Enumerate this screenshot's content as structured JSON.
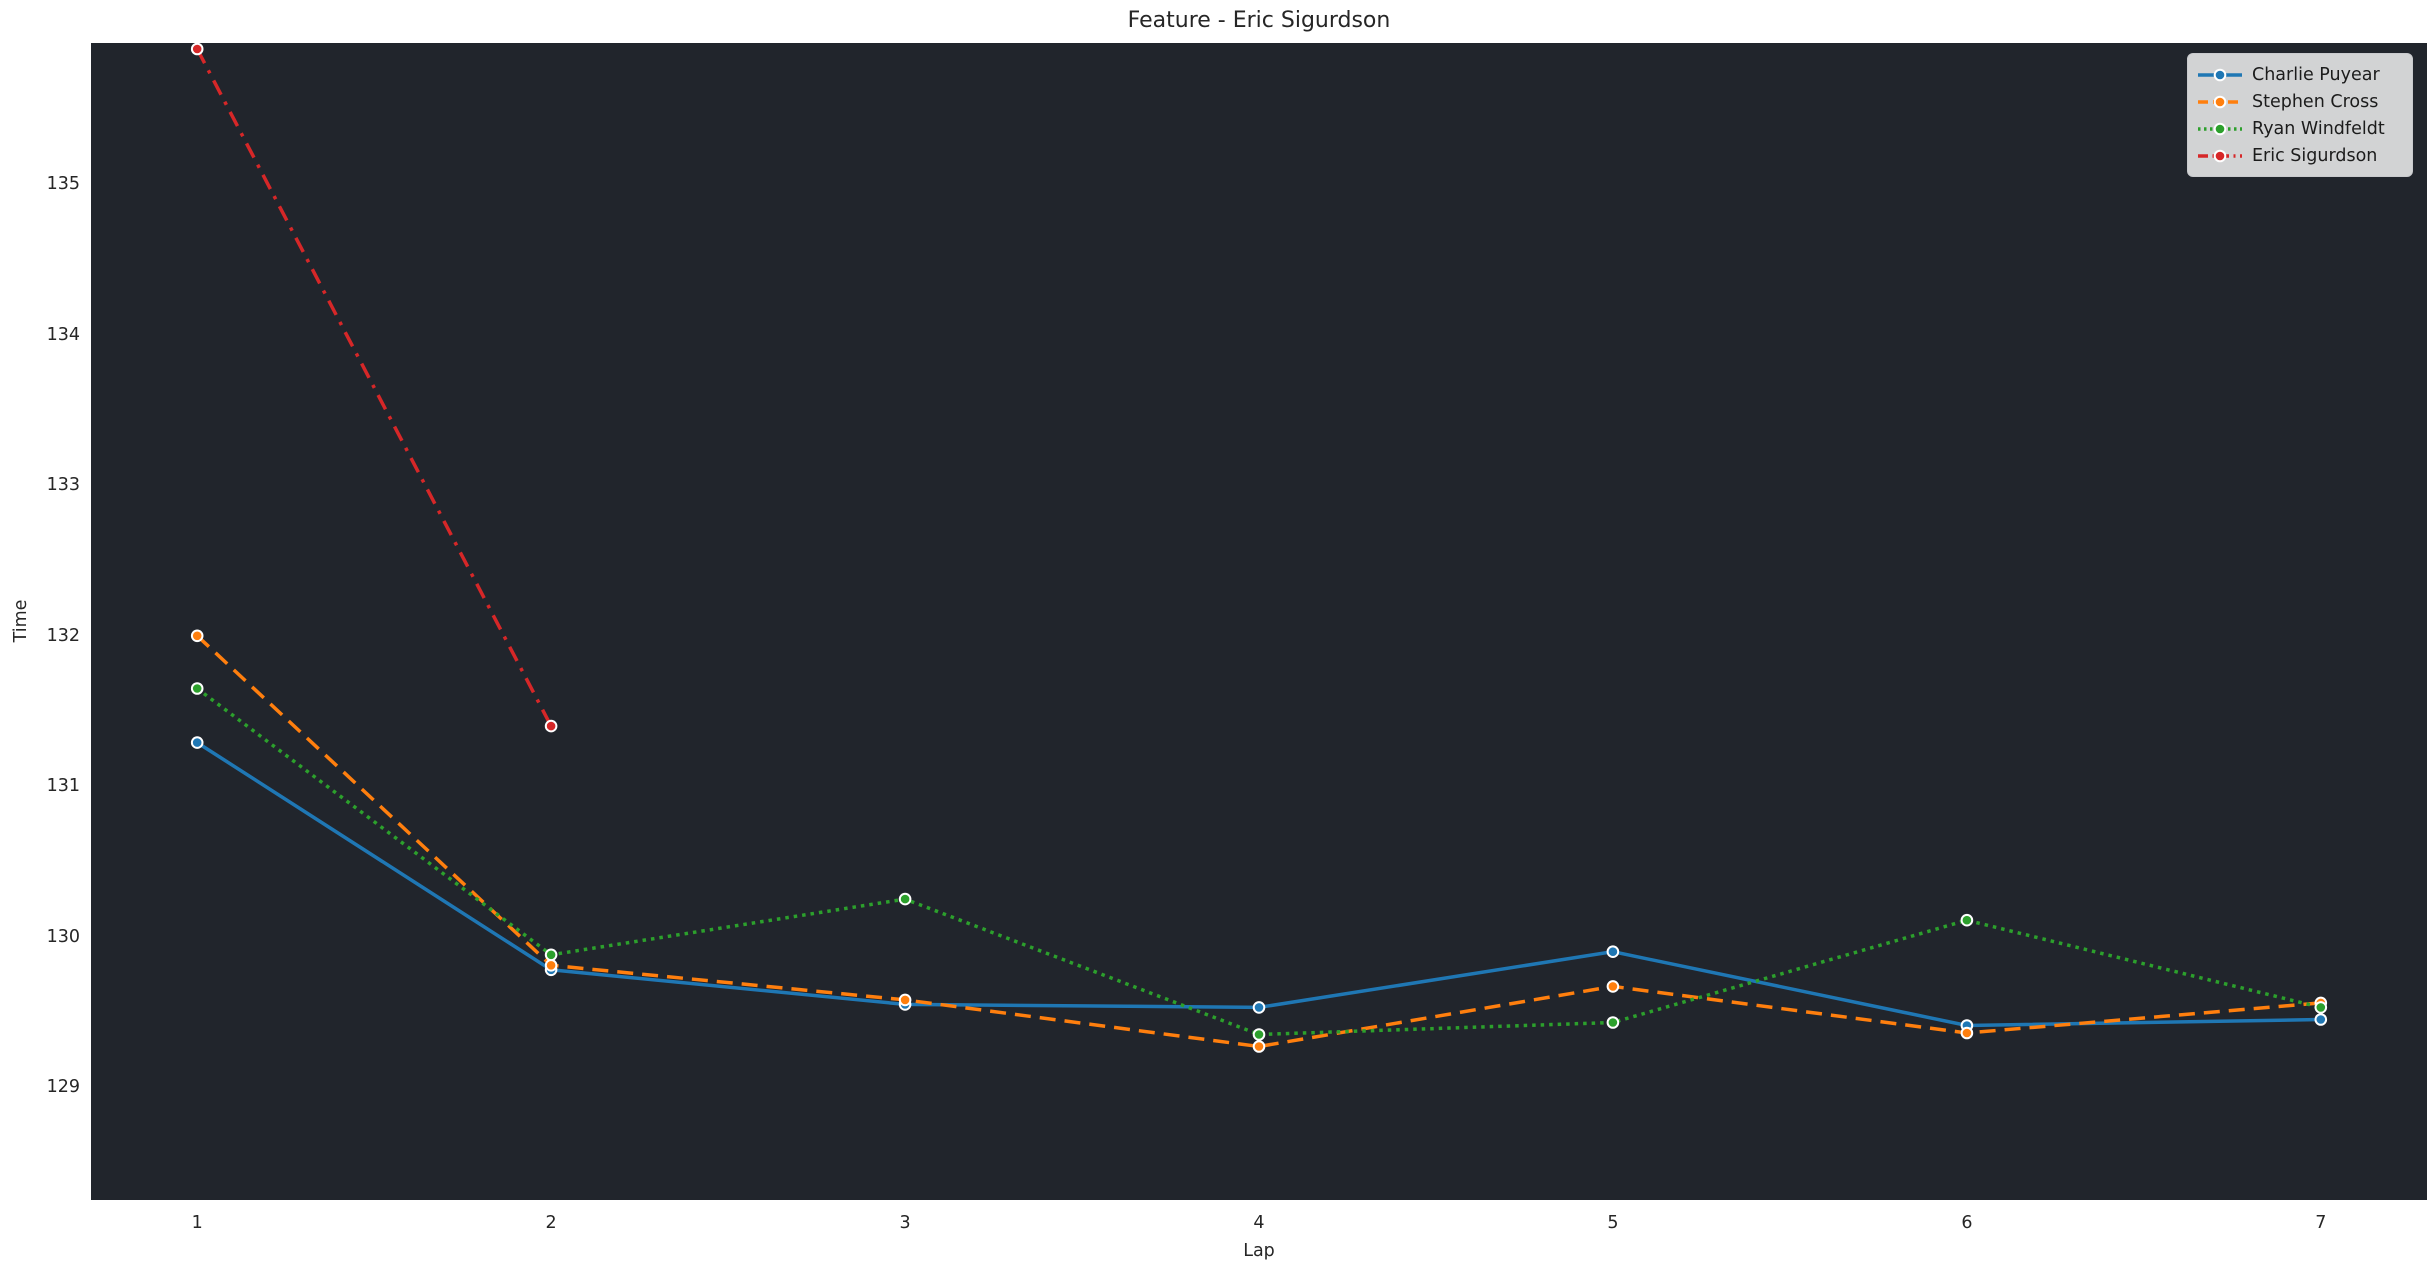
{
  "figure": {
    "background": "#ffffff",
    "axes_background": "#21252c",
    "text_color": "#262626",
    "legend_background": "#d2d4d7",
    "marker_edge_color": "#ffffff"
  },
  "chart_data": {
    "type": "line",
    "title": "Feature - Eric Sigurdson",
    "xlabel": "Lap",
    "ylabel": "Time",
    "xlim": [
      0.7,
      7.3
    ],
    "ylim": [
      128.25,
      135.94
    ],
    "xticks": [
      1,
      2,
      3,
      4,
      5,
      6,
      7
    ],
    "yticks": [
      129,
      130,
      131,
      132,
      133,
      134,
      135
    ],
    "grid": false,
    "legend_position": "upper right",
    "series": [
      {
        "name": "Charlie Puyear",
        "color": "#1f77b4",
        "linestyle": "solid",
        "marker": "circle",
        "x": [
          1,
          2,
          3,
          4,
          5,
          6,
          7
        ],
        "values": [
          131.29,
          129.78,
          129.55,
          129.53,
          129.9,
          129.41,
          129.45
        ]
      },
      {
        "name": "Stephen Cross",
        "color": "#ff7f0e",
        "linestyle": "dashed",
        "marker": "circle",
        "x": [
          1,
          2,
          3,
          4,
          5,
          6,
          7
        ],
        "values": [
          132.0,
          129.81,
          129.58,
          129.27,
          129.67,
          129.36,
          129.56
        ]
      },
      {
        "name": "Ryan Windfeldt",
        "color": "#2ca02c",
        "linestyle": "dotted",
        "marker": "circle",
        "x": [
          1,
          2,
          3,
          4,
          5,
          6,
          7
        ],
        "values": [
          131.65,
          129.88,
          130.25,
          129.35,
          129.43,
          130.11,
          129.53
        ]
      },
      {
        "name": "Eric Sigurdson",
        "color": "#d62728",
        "linestyle": "dashdot",
        "marker": "circle",
        "x": [
          1,
          2
        ],
        "values": [
          135.9,
          131.4
        ]
      }
    ]
  }
}
